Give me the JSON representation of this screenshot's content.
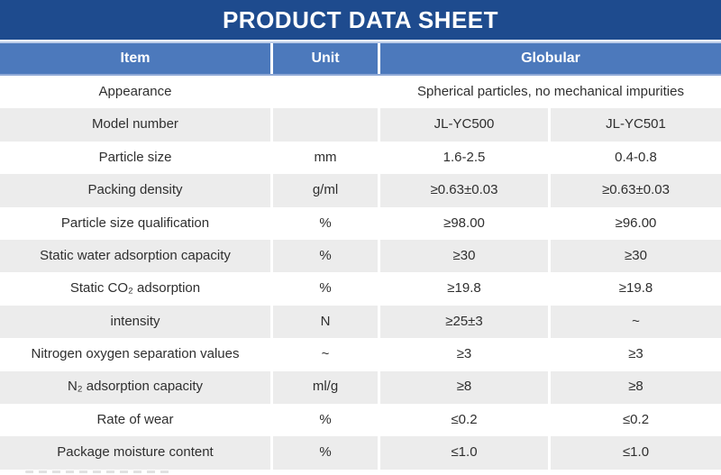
{
  "banner": {
    "title": "PRODUCT DATA SHEET"
  },
  "table": {
    "columns": {
      "item": "Item",
      "unit": "Unit",
      "globular": "Globular"
    },
    "rows": [
      {
        "item": "Appearance",
        "unit": "",
        "merged": "Spherical particles, no mechanical impurities"
      },
      {
        "item": "Model number",
        "unit": "",
        "v1": "JL-YC500",
        "v2": "JL-YC501"
      },
      {
        "item": "Particle size",
        "unit": "mm",
        "v1": "1.6-2.5",
        "v2": "0.4-0.8"
      },
      {
        "item": "Packing density",
        "unit": "g/ml",
        "v1": "≥0.63±0.03",
        "v2": "≥0.63±0.03"
      },
      {
        "item": "Particle size qualification",
        "unit": "%",
        "v1": "≥98.00",
        "v2": "≥96.00"
      },
      {
        "item": "Static water adsorption capacity",
        "unit": "%",
        "v1": "≥30",
        "v2": "≥30"
      },
      {
        "item": "Static CO₂ adsorption",
        "unit": "%",
        "v1": "≥19.8",
        "v2": "≥19.8"
      },
      {
        "item": "intensity",
        "unit": "N",
        "v1": "≥25±3",
        "v2": "~"
      },
      {
        "item": "Nitrogen oxygen separation values",
        "unit": "~",
        "v1": "≥3",
        "v2": "≥3"
      },
      {
        "item": "N₂ adsorption capacity",
        "unit": "ml/g",
        "v1": "≥8",
        "v2": "≥8"
      },
      {
        "item": "Rate of wear",
        "unit": "%",
        "v1": "≤0.2",
        "v2": "≤0.2"
      },
      {
        "item": "Package moisture content",
        "unit": "%",
        "v1": "≤1.0",
        "v2": "≤1.0"
      }
    ],
    "colors": {
      "banner_bg": "#1E4B8E",
      "header_bg": "#4C79BC",
      "header_text": "#FFFFFF",
      "row_alt_bg": "#ECECEC",
      "body_text": "#2F2F2F"
    }
  }
}
